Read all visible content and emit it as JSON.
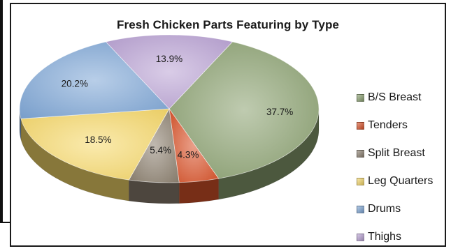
{
  "chart_data": {
    "type": "pie",
    "title": "Fresh Chicken Parts Featuring by Type",
    "legend_position": "right",
    "slices": [
      {
        "name": "B/S Breast",
        "value": 37.7,
        "label": "37.7%",
        "color": "#8aa070"
      },
      {
        "name": "Tenders",
        "value": 4.3,
        "label": "4.3%",
        "color": "#d8532a"
      },
      {
        "name": "Split Breast",
        "value": 5.4,
        "label": "5.4%",
        "color": "#8c8070"
      },
      {
        "name": "Leg Quarters",
        "value": 18.5,
        "label": "18.5%",
        "color": "#f6d86a"
      },
      {
        "name": "Drums",
        "value": 20.2,
        "label": "20.2%",
        "color": "#7ea6d6"
      },
      {
        "name": "Thighs",
        "value": 13.9,
        "label": "13.9%",
        "color": "#b9a2d4"
      }
    ]
  }
}
